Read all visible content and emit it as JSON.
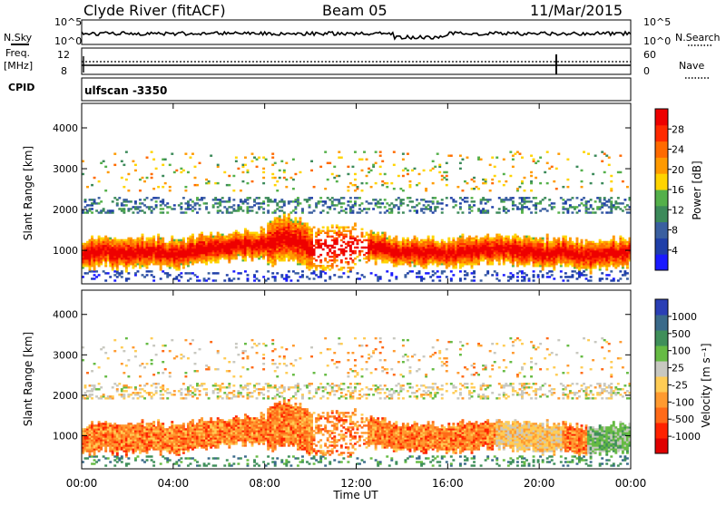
{
  "header": {
    "station": "Clyde River (fitACF)",
    "beam": "Beam 05",
    "date": "11/Mar/2015"
  },
  "top_panels": {
    "nsky_label": "N.Sky",
    "nsearch_label": "N.Search",
    "noise_ticks": [
      "10^5",
      "10^0"
    ],
    "freq_label_1": "Freq.",
    "freq_label_2": "[MHz]",
    "freq_ticks": [
      "12",
      "8"
    ],
    "nave_label": "Nave",
    "nave_ticks": [
      "60",
      "0"
    ],
    "cpid_label": "CPID",
    "cpid_value": "ulfscan  -3350"
  },
  "colors": {
    "power_scale": [
      "#1a1aff",
      "#1f3fa8",
      "#3a5fa0",
      "#3c8a5a",
      "#54b04a",
      "#ffd400",
      "#ff9a00",
      "#ff6a00",
      "#ff2a00",
      "#ee0000"
    ],
    "velocity_scale": [
      "#2a3fb5",
      "#3a6a8a",
      "#3f8f5a",
      "#66bb44",
      "#c8c8c0",
      "#ffcc55",
      "#ff9a30",
      "#ff6a18",
      "#ff2200",
      "#e00000"
    ]
  },
  "chart_data": [
    {
      "type": "heatmap",
      "panel": "power",
      "xlabel": "Time UT",
      "ylabel": "Slant Range [km]",
      "x_ticks": [
        "00:00",
        "04:00",
        "08:00",
        "12:00",
        "16:00",
        "20:00",
        "00:00"
      ],
      "y_ticks": [
        "1000",
        "2000",
        "3000",
        "4000"
      ],
      "xlim_hours": [
        0,
        24
      ],
      "ylim": [
        180,
        4600
      ],
      "colorbar_label": "Power [dB]",
      "colorbar_ticks": [
        "4",
        "8",
        "12",
        "16",
        "20",
        "24",
        "28"
      ],
      "colorbar_range": [
        0,
        30
      ],
      "main_band_center_km": [
        [
          0,
          900
        ],
        [
          1,
          950
        ],
        [
          2,
          900
        ],
        [
          3,
          950
        ],
        [
          4,
          900
        ],
        [
          5,
          1000
        ],
        [
          6,
          1050
        ],
        [
          7,
          1100
        ],
        [
          8,
          1150
        ],
        [
          9,
          1300
        ],
        [
          10,
          1000
        ],
        [
          11,
          1000
        ],
        [
          12,
          1100
        ],
        [
          13,
          1050
        ],
        [
          14,
          950
        ],
        [
          15,
          950
        ],
        [
          16,
          900
        ],
        [
          17,
          950
        ],
        [
          18,
          1000
        ],
        [
          19,
          1000
        ],
        [
          20,
          900
        ],
        [
          21,
          950
        ],
        [
          22,
          850
        ],
        [
          23,
          900
        ],
        [
          24,
          950
        ]
      ]
    },
    {
      "type": "heatmap",
      "panel": "velocity",
      "xlabel": "Time UT",
      "ylabel": "Slant Range [km]",
      "x_ticks": [
        "00:00",
        "04:00",
        "08:00",
        "12:00",
        "16:00",
        "20:00",
        "00:00"
      ],
      "y_ticks": [
        "1000",
        "2000",
        "3000",
        "4000"
      ],
      "xlim_hours": [
        0,
        24
      ],
      "ylim": [
        180,
        4600
      ],
      "colorbar_label": "Velocity [m s⁻¹]",
      "colorbar_ticks": [
        "1000",
        "500",
        "100",
        "25",
        "-25",
        "-100",
        "-500",
        "-1000"
      ],
      "colorbar_range": [
        -1000,
        1000
      ]
    }
  ]
}
